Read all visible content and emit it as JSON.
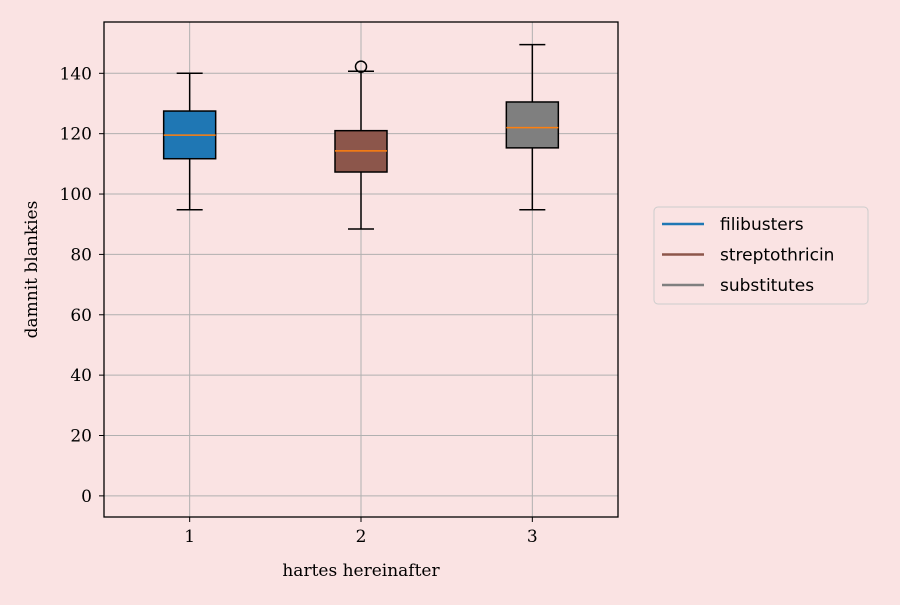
{
  "chart_data": {
    "type": "box",
    "xlabel": "hartes hereinafter",
    "ylabel": "damnit blankies",
    "ylim": [
      -7,
      157
    ],
    "xlim": [
      0.5,
      3.5
    ],
    "yticks": [
      0,
      20,
      40,
      60,
      80,
      100,
      120,
      140
    ],
    "categories": [
      "1",
      "2",
      "3"
    ],
    "grid": true,
    "legend_position": "right",
    "background": "#fae3e3",
    "median_color": "#ff7f0e",
    "series": [
      {
        "name": "filibusters",
        "color": "#1f77b4",
        "whisker_low": 94.8,
        "q1": 111.7,
        "median": 119.5,
        "q3": 127.5,
        "whisker_high": 140.0,
        "outliers": []
      },
      {
        "name": "streptothricin",
        "color": "#8c564b",
        "whisker_low": 88.4,
        "q1": 107.3,
        "median": 114.3,
        "q3": 121.0,
        "whisker_high": 140.7,
        "outliers": [
          142.2
        ]
      },
      {
        "name": "substitutes",
        "color": "#7f7f7f",
        "whisker_low": 94.8,
        "q1": 115.3,
        "median": 122.0,
        "q3": 130.5,
        "whisker_high": 149.5,
        "outliers": []
      }
    ]
  }
}
